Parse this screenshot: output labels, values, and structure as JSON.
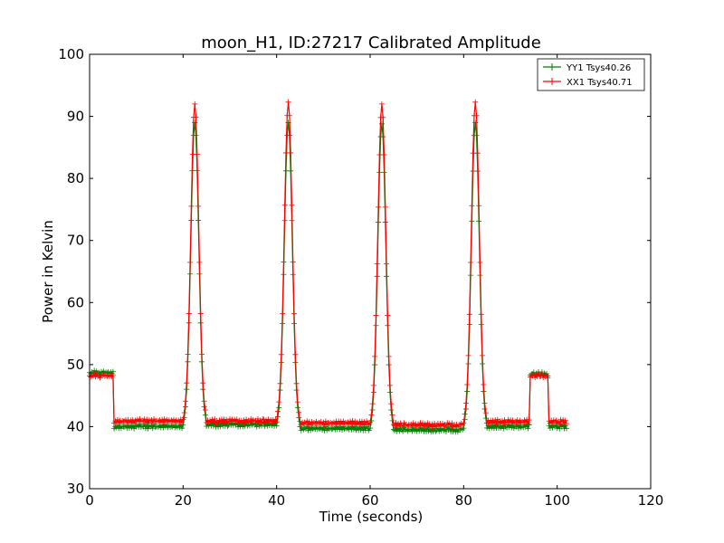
{
  "chart_data": {
    "type": "line",
    "title": "moon_H1, ID:27217 Calibrated Amplitude",
    "xlabel": "Time (seconds)",
    "ylabel": "Power in Kelvin",
    "xlim": [
      0,
      120
    ],
    "ylim": [
      30,
      100
    ],
    "xticks": [
      "0",
      "20",
      "40",
      "60",
      "80",
      "100",
      "120"
    ],
    "yticks": [
      "30",
      "40",
      "50",
      "60",
      "70",
      "80",
      "90",
      "100"
    ],
    "grid": false,
    "legend": "top-right",
    "marker": "plus",
    "series": [
      {
        "name": "YY1 Tsys40.26",
        "color": "#008000",
        "baseline_segments": [
          {
            "x0": 0.0,
            "x1": 5.0,
            "level": 48.7
          },
          {
            "x0": 5.2,
            "x1": 20.0,
            "level": 40.0
          },
          {
            "x0": 25.0,
            "x1": 40.0,
            "level": 40.3
          },
          {
            "x0": 45.0,
            "x1": 60.0,
            "level": 39.7
          },
          {
            "x0": 65.0,
            "x1": 80.0,
            "level": 39.5
          },
          {
            "x0": 85.0,
            "x1": 94.0,
            "level": 40.0
          },
          {
            "x0": 94.2,
            "x1": 98.0,
            "level": 48.5
          },
          {
            "x0": 98.2,
            "x1": 102.0,
            "level": 40.0
          }
        ],
        "peaks": [
          {
            "x": 22.5,
            "value": 89.0
          },
          {
            "x": 42.5,
            "value": 89.0
          },
          {
            "x": 62.5,
            "value": 88.8
          },
          {
            "x": 82.5,
            "value": 89.0
          }
        ]
      },
      {
        "name": "XX1 Tsys40.71",
        "color": "#ff0000",
        "baseline_segments": [
          {
            "x0": 0.0,
            "x1": 5.0,
            "level": 48.2
          },
          {
            "x0": 5.2,
            "x1": 20.0,
            "level": 40.9
          },
          {
            "x0": 25.0,
            "x1": 40.0,
            "level": 40.9
          },
          {
            "x0": 45.0,
            "x1": 60.0,
            "level": 40.6
          },
          {
            "x0": 65.0,
            "x1": 80.0,
            "level": 40.3
          },
          {
            "x0": 85.0,
            "x1": 94.0,
            "level": 40.8
          },
          {
            "x0": 94.2,
            "x1": 98.0,
            "level": 48.2
          },
          {
            "x0": 98.2,
            "x1": 102.0,
            "level": 40.8
          }
        ],
        "peaks": [
          {
            "x": 22.5,
            "value": 92.0
          },
          {
            "x": 42.5,
            "value": 92.3
          },
          {
            "x": 62.5,
            "value": 92.0
          },
          {
            "x": 82.5,
            "value": 92.3
          }
        ]
      }
    ]
  }
}
